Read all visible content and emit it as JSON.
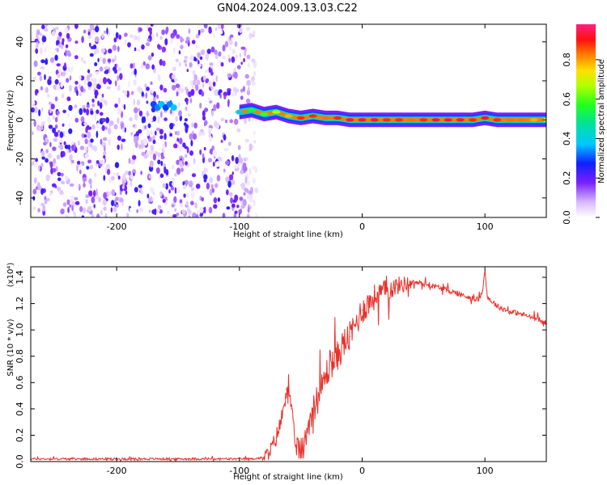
{
  "title": "GN04.2024.009.13.03.C22",
  "chart_data": [
    {
      "type": "heatmap",
      "xlabel": "Height of straight line (km)",
      "ylabel": "Frequency (Hz)",
      "xlim": [
        -270,
        150
      ],
      "ylim": [
        -50,
        49
      ],
      "xticks": [
        -200,
        -100,
        0,
        100
      ],
      "yticks": [
        -40,
        -20,
        0,
        20,
        40
      ],
      "colorbar": {
        "label": "Normalized spectral amplitude",
        "range": [
          0,
          0.98
        ],
        "ticks": [
          "0.0",
          "0.2",
          "0.4",
          "0.6",
          "0.8"
        ],
        "tick_values": [
          0,
          0.2,
          0.4,
          0.6,
          0.8
        ]
      },
      "noise_region": {
        "x_range": [
          -270,
          -95
        ],
        "description_value": 0.2
      },
      "ridge": {
        "x": [
          -100,
          -90,
          -80,
          -70,
          -60,
          -50,
          -40,
          -30,
          -20,
          -10,
          0,
          10,
          20,
          30,
          40,
          50,
          60,
          70,
          80,
          90,
          100,
          110,
          120,
          130,
          140,
          150
        ],
        "frequency": [
          4,
          5,
          3,
          4,
          2,
          1,
          2,
          1,
          1,
          0,
          0,
          0,
          0,
          0,
          0,
          0,
          0,
          0,
          0,
          0,
          1,
          0,
          0,
          0,
          0,
          0
        ],
        "amplitude": [
          0.4,
          0.55,
          0.6,
          0.7,
          0.8,
          0.9,
          0.9,
          0.85,
          0.9,
          0.95,
          0.95,
          0.95,
          0.9,
          0.9,
          0.85,
          0.9,
          0.95,
          0.95,
          0.95,
          0.9,
          0.95,
          0.9,
          0.85,
          0.85,
          0.8,
          0.75
        ]
      },
      "blob": {
        "x": -160,
        "frequency": 8,
        "amplitude": 0.3
      }
    },
    {
      "type": "line",
      "xlabel": "Height of straight line (km)",
      "ylabel": "SNR (10 * v/v)",
      "y_multiplier": "(x10⁴)",
      "xlim": [
        -270,
        150
      ],
      "ylim": [
        0,
        1.48
      ],
      "xticks": [
        -200,
        -100,
        0,
        100
      ],
      "yticks": [
        0.0,
        0.2,
        0.4,
        0.6,
        0.8,
        1.0,
        1.2,
        1.4
      ],
      "ytick_labels": [
        "0.0",
        "0.2",
        "0.4",
        "0.6",
        "0.8",
        "1.0",
        "1.2",
        "1.4"
      ],
      "color": "#e8302a",
      "series": [
        {
          "x": [
            -270,
            -240,
            -200,
            -150,
            -120,
            -100,
            -90,
            -80,
            -75,
            -70,
            -65,
            -62,
            -60,
            -58,
            -55,
            -50,
            -47,
            -45,
            -42,
            -40,
            -35,
            -30,
            -25,
            -20,
            -15,
            -10,
            -5,
            0,
            5,
            10,
            15,
            20,
            25,
            30,
            35,
            40,
            45,
            50,
            60,
            70,
            80,
            90,
            95,
            98,
            100,
            102,
            105,
            108,
            110,
            115,
            120,
            130,
            140,
            150
          ],
          "y": [
            0.02,
            0.02,
            0.02,
            0.02,
            0.02,
            0.02,
            0.02,
            0.03,
            0.08,
            0.18,
            0.35,
            0.55,
            0.6,
            0.4,
            0.15,
            0.08,
            0.12,
            0.25,
            0.35,
            0.4,
            0.5,
            0.65,
            0.75,
            0.8,
            0.9,
            0.95,
            1.05,
            1.15,
            1.2,
            1.25,
            1.28,
            1.3,
            1.32,
            1.34,
            1.35,
            1.36,
            1.36,
            1.35,
            1.33,
            1.3,
            1.27,
            1.24,
            1.23,
            1.3,
            1.45,
            1.25,
            1.22,
            1.2,
            1.18,
            1.16,
            1.14,
            1.12,
            1.09,
            1.05
          ]
        }
      ]
    }
  ]
}
